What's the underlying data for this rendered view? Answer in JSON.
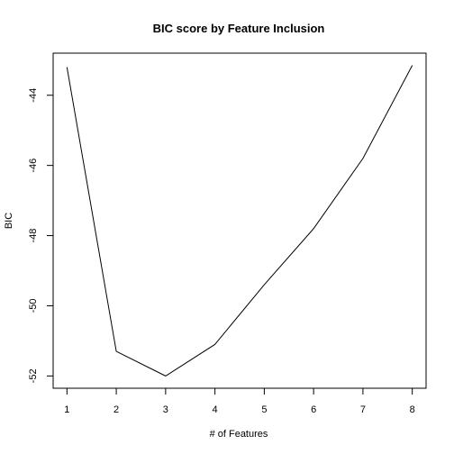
{
  "chart_data": {
    "type": "line",
    "title": "BIC score by Feature Inclusion",
    "xlabel": "# of Features",
    "ylabel": "BIC",
    "x": [
      1,
      2,
      3,
      4,
      5,
      6,
      7,
      8
    ],
    "series": [
      {
        "values": [
          -43.2,
          -51.3,
          -52.0,
          -51.1,
          -49.4,
          -47.8,
          -45.8,
          -43.15
        ]
      }
    ],
    "xticks": [
      "1",
      "2",
      "3",
      "4",
      "5",
      "6",
      "7",
      "8"
    ],
    "yticks": [
      "-52",
      "-50",
      "-48",
      "-46",
      "-44"
    ],
    "xlim": [
      0.72,
      8.28
    ],
    "ylim": [
      -52.35,
      -42.8
    ],
    "grid": false,
    "legend": "none",
    "line_color": "#000000"
  }
}
